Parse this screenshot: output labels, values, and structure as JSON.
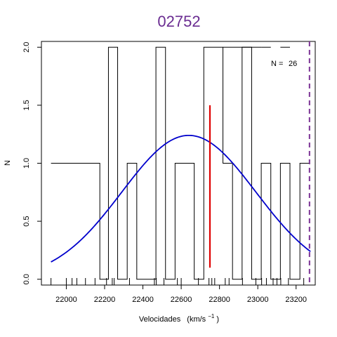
{
  "chart_data": {
    "type": "line",
    "title": "02752",
    "xlabel": "Velocidades",
    "xlabel_units": "(km/s",
    "xlabel_exp": "−1",
    "xlabel_close": ")",
    "ylabel": "N",
    "xlim": [
      21870,
      23300
    ],
    "ylim": [
      -0.05,
      2.05
    ],
    "x_ticks": [
      22000,
      22200,
      22400,
      22600,
      22800,
      23000,
      23200
    ],
    "y_ticks": [
      0.0,
      0.5,
      1.0,
      1.5,
      2.0
    ],
    "y_tick_labels": [
      "0.0",
      "0.5",
      "1.0",
      "1.5",
      "2.0"
    ],
    "histogram_step": {
      "name": "histogram",
      "color": "#000000",
      "points": [
        [
          21920,
          1
        ],
        [
          22175,
          1
        ],
        [
          22175,
          0
        ],
        [
          22220,
          0
        ],
        [
          22220,
          2
        ],
        [
          22268,
          2
        ],
        [
          22268,
          0
        ],
        [
          22318,
          0
        ],
        [
          22318,
          1
        ],
        [
          22368,
          1
        ],
        [
          22368,
          0
        ],
        [
          22468,
          0
        ],
        [
          22468,
          2
        ],
        [
          22518,
          2
        ],
        [
          22518,
          0
        ],
        [
          22568,
          0
        ],
        [
          22568,
          1
        ],
        [
          22668,
          1
        ],
        [
          22668,
          0
        ],
        [
          22718,
          0
        ],
        [
          22718,
          2
        ],
        [
          22818,
          2
        ],
        [
          22818,
          1
        ],
        [
          22868,
          1
        ],
        [
          22868,
          0
        ],
        [
          22918,
          0
        ],
        [
          22918,
          2
        ],
        [
          22968,
          2
        ],
        [
          22968,
          0
        ],
        [
          23018,
          0
        ],
        [
          23018,
          1
        ],
        [
          23068,
          1
        ],
        [
          23068,
          0
        ],
        [
          23118,
          0
        ],
        [
          23118,
          1
        ],
        [
          23168,
          1
        ],
        [
          23168,
          0
        ],
        [
          23220,
          0
        ],
        [
          23220,
          1
        ],
        [
          23270,
          1
        ]
      ],
      "extra_segments": [
        [
          [
            22818,
            2
          ],
          [
            23018,
            2
          ]
        ],
        [
          [
            23018,
            2
          ],
          [
            23068,
            2
          ]
        ],
        [
          [
            23118,
            2
          ],
          [
            23168,
            2
          ]
        ]
      ]
    },
    "gaussian": {
      "name": "gaussian fit",
      "color": "#0000cc",
      "mean": 22640,
      "sd": 350,
      "peak": 1.24,
      "x_range": [
        21920,
        23275
      ]
    },
    "median_line": {
      "color": "#e00000",
      "x": 22750,
      "y_range": [
        0.1,
        1.5
      ]
    },
    "dashed_line": {
      "color": "#7b3294",
      "x": 23270
    },
    "rug": [
      21920,
      22000,
      22030,
      22055,
      22100,
      22150,
      22210,
      22240,
      22250,
      22330,
      22460,
      22470,
      22510,
      22580,
      22600,
      22690,
      22745,
      22760,
      22775,
      22830,
      22850,
      22920,
      22990,
      23020,
      23045,
      23080,
      23100,
      23120,
      23160,
      23240
    ],
    "annotation": {
      "label": "N =",
      "value": "26"
    }
  }
}
